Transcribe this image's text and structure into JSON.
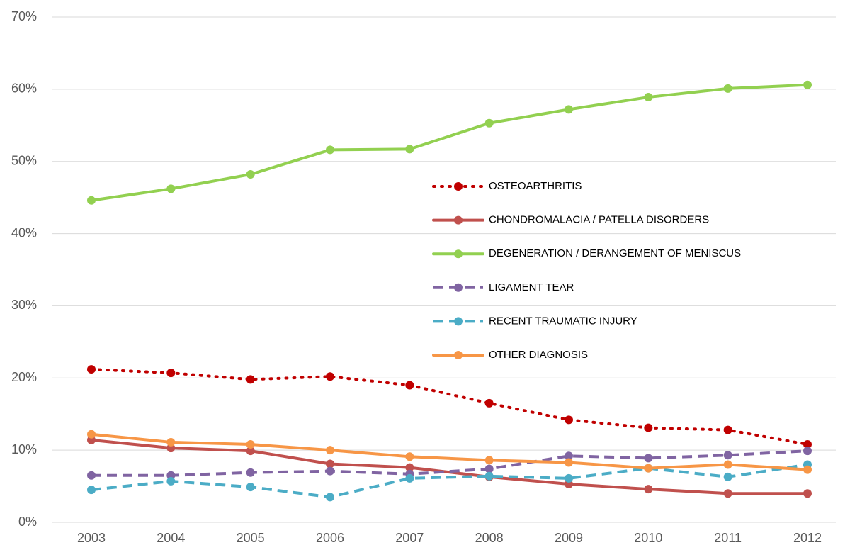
{
  "chart_data": {
    "type": "line",
    "x": [
      "2003",
      "2004",
      "2005",
      "2006",
      "2007",
      "2008",
      "2009",
      "2010",
      "2011",
      "2012"
    ],
    "ylim": [
      0,
      70
    ],
    "yticks": [
      {
        "value": 0,
        "label": "0%"
      },
      {
        "value": 10,
        "label": "10%"
      },
      {
        "value": 20,
        "label": "20%"
      },
      {
        "value": 30,
        "label": "30%"
      },
      {
        "value": 40,
        "label": "40%"
      },
      {
        "value": 50,
        "label": "50%"
      },
      {
        "value": 60,
        "label": "60%"
      },
      {
        "value": 70,
        "label": "70%"
      }
    ],
    "grid": true,
    "legend": "center-right",
    "series": [
      {
        "name": "OSTEOARTHRITIS",
        "color": "#c00000",
        "dash": "dotted",
        "values": [
          21.2,
          20.7,
          19.8,
          20.2,
          19.0,
          16.5,
          14.2,
          13.1,
          12.8,
          10.8
        ]
      },
      {
        "name": "CHONDROMALACIA / PATELLA DISORDERS",
        "color": "#c0504d",
        "dash": "solid",
        "values": [
          11.4,
          10.3,
          9.9,
          8.1,
          7.6,
          6.3,
          5.3,
          4.6,
          4.0,
          4.0
        ]
      },
      {
        "name": "DEGENERATION / DERANGEMENT OF MENISCUS",
        "color": "#92d050",
        "dash": "solid",
        "values": [
          44.6,
          46.2,
          48.2,
          51.6,
          51.7,
          55.3,
          57.2,
          58.9,
          60.1,
          60.6
        ]
      },
      {
        "name": "LIGAMENT TEAR",
        "color": "#8064a2",
        "dash": "dashed",
        "values": [
          6.5,
          6.5,
          6.9,
          7.1,
          6.7,
          7.4,
          9.2,
          8.9,
          9.3,
          9.9
        ]
      },
      {
        "name": "RECENT TRAUMATIC INJURY",
        "color": "#4bacc6",
        "dash": "dashed",
        "values": [
          4.5,
          5.7,
          4.9,
          3.5,
          6.1,
          6.4,
          6.1,
          7.5,
          6.3,
          8.0
        ]
      },
      {
        "name": "OTHER DIAGNOSIS",
        "color": "#f79646",
        "dash": "solid",
        "values": [
          12.2,
          11.1,
          10.8,
          10.0,
          9.1,
          8.6,
          8.3,
          7.5,
          8.0,
          7.3
        ]
      }
    ]
  }
}
